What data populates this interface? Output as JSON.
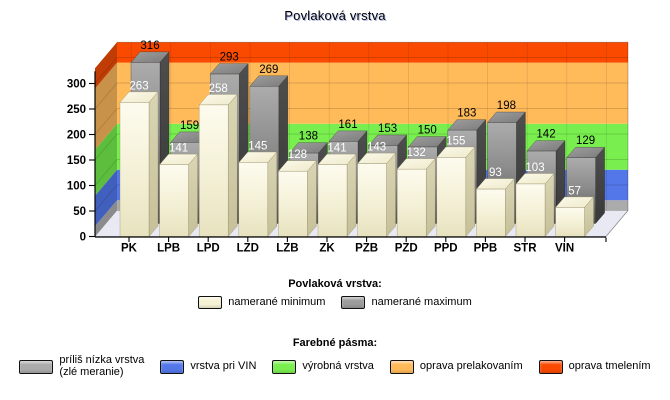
{
  "title": "Povlaková vrstva",
  "chart_data": {
    "type": "bar",
    "variant": "3d-column",
    "title": "Povlaková vrstva",
    "categories": [
      "PK",
      "LPB",
      "LPD",
      "LZD",
      "LZB",
      "ZK",
      "PZB",
      "PZD",
      "PPD",
      "PPB",
      "STR",
      "VIN"
    ],
    "series": [
      {
        "name": "namerané minimum",
        "color": "#F6F2D4",
        "label_color": "#FFFFFF",
        "values": [
          263,
          141,
          258,
          145,
          128,
          141,
          143,
          132,
          155,
          93,
          103,
          57
        ]
      },
      {
        "name": "namerané maximum",
        "color": "#9C9C9C",
        "label_color": "#000000",
        "values": [
          316,
          159,
          293,
          269,
          138,
          161,
          153,
          150,
          183,
          198,
          142,
          129
        ]
      }
    ],
    "y_axis": {
      "min": 0,
      "max": 330,
      "tick_step": 50,
      "ticks": [
        0,
        50,
        100,
        150,
        200,
        250,
        300
      ]
    },
    "x_axis_labels": [
      "PK",
      "LPB",
      "LPD",
      "LZD",
      "LZB",
      "ZK",
      "PZB",
      "PZD",
      "PPD",
      "PPB",
      "STR",
      "VIN"
    ],
    "bands": [
      {
        "name": "príliš nízka vrstva (zlé meranie)",
        "from": 0,
        "to": 20,
        "color": "#ABABAB",
        "wall_color": "#8B8B8B"
      },
      {
        "name": "vrstva pri VIN",
        "from": 20,
        "to": 80,
        "color": "#5377E8",
        "wall_color": "#415FBC"
      },
      {
        "name": "výrobná vrstva",
        "from": 80,
        "to": 170,
        "color": "#79EF4F",
        "wall_color": "#5CBE3C"
      },
      {
        "name": "oprava prelakovaním",
        "from": 170,
        "to": 290,
        "color": "#FFBA5A",
        "wall_color": "#C9924A"
      },
      {
        "name": "oprava tmelením",
        "from": 290,
        "to": 330,
        "color": "#FA4A00",
        "wall_color": "#C03C05"
      }
    ],
    "floor_color": "#E9E9F4",
    "grid": true,
    "legend_position": "bottom"
  },
  "legend_series": {
    "header": "Povlaková vrstva:",
    "items": [
      {
        "label": "namerané minimum",
        "color": "#F6F2D4"
      },
      {
        "label": "namerané maximum",
        "color": "#9C9C9C"
      }
    ]
  },
  "legend_bands": {
    "header": "Farebné pásma:",
    "items": [
      {
        "label": "príliš nízka vrstva",
        "label2": "(zlé meranie)",
        "color": "#ABABAB",
        "wide": true
      },
      {
        "label": "vrstva pri VIN",
        "color": "#5377E8"
      },
      {
        "label": "výrobná vrstva",
        "color": "#79EF4F"
      },
      {
        "label": "oprava prelakovaním",
        "color": "#FFBA5A"
      },
      {
        "label": "oprava tmelením",
        "color": "#FA4A00"
      }
    ]
  }
}
